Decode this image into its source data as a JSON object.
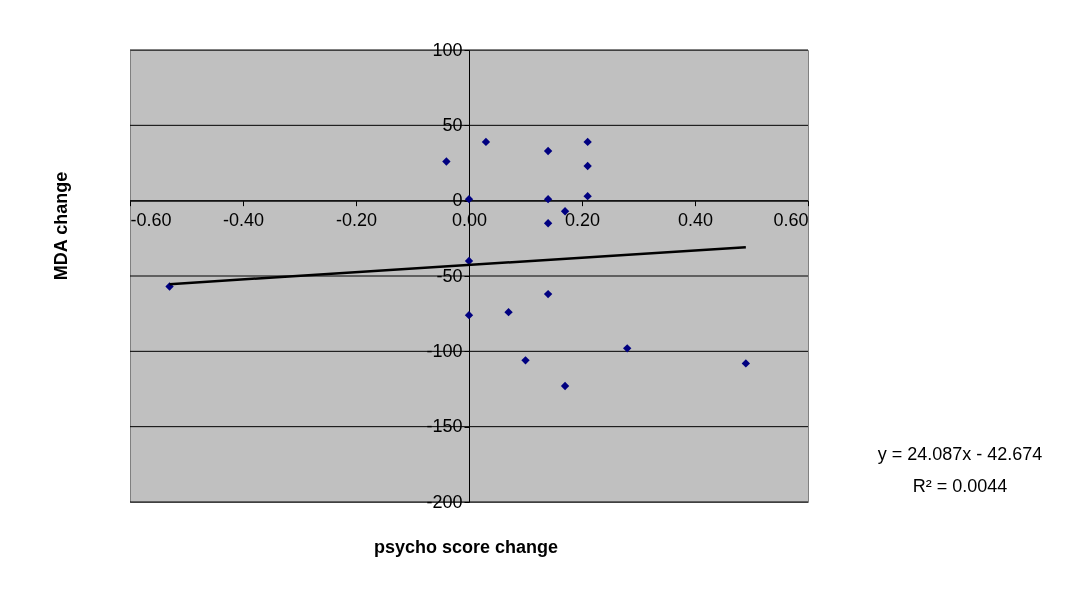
{
  "chart_data": {
    "type": "scatter",
    "xlabel": "psycho score change",
    "ylabel": "MDA change",
    "xlim": [
      -0.6,
      0.6
    ],
    "ylim": [
      -200,
      100
    ],
    "xticks": [
      {
        "value": -0.6,
        "label": "-0.60"
      },
      {
        "value": -0.4,
        "label": "-0.40"
      },
      {
        "value": -0.2,
        "label": "-0.20"
      },
      {
        "value": 0,
        "label": "0.00"
      },
      {
        "value": 0.2,
        "label": "0.20"
      },
      {
        "value": 0.4,
        "label": "0.40"
      },
      {
        "value": 0.6,
        "label": "0.60"
      }
    ],
    "yticks": [
      -200,
      -150,
      -100,
      -50,
      0,
      50,
      100
    ],
    "grid": "y",
    "series": [
      {
        "marker": "diamond",
        "color": "#000080",
        "x": [
          -0.53,
          -0.04,
          0.03,
          0.0,
          0.0,
          0.0,
          0.14,
          0.14,
          0.14,
          0.17,
          0.21,
          0.21,
          0.21,
          0.14,
          0.07,
          0.1,
          0.17,
          0.28,
          0.49
        ],
        "values": [
          -57,
          26,
          39,
          1,
          -40,
          -76,
          33,
          1,
          -15,
          -7,
          39,
          23,
          3,
          -62,
          -74,
          -106,
          -123,
          -98,
          -108
        ]
      },
      {
        "type": "line",
        "marker": "none",
        "line_style": "solid",
        "color": "#000000",
        "x": [
          -0.53,
          0.49
        ],
        "values": [
          -55.4,
          -30.9
        ]
      }
    ],
    "annotations": [
      "y = 24.087x - 42.674",
      "R² = 0.0044"
    ]
  }
}
